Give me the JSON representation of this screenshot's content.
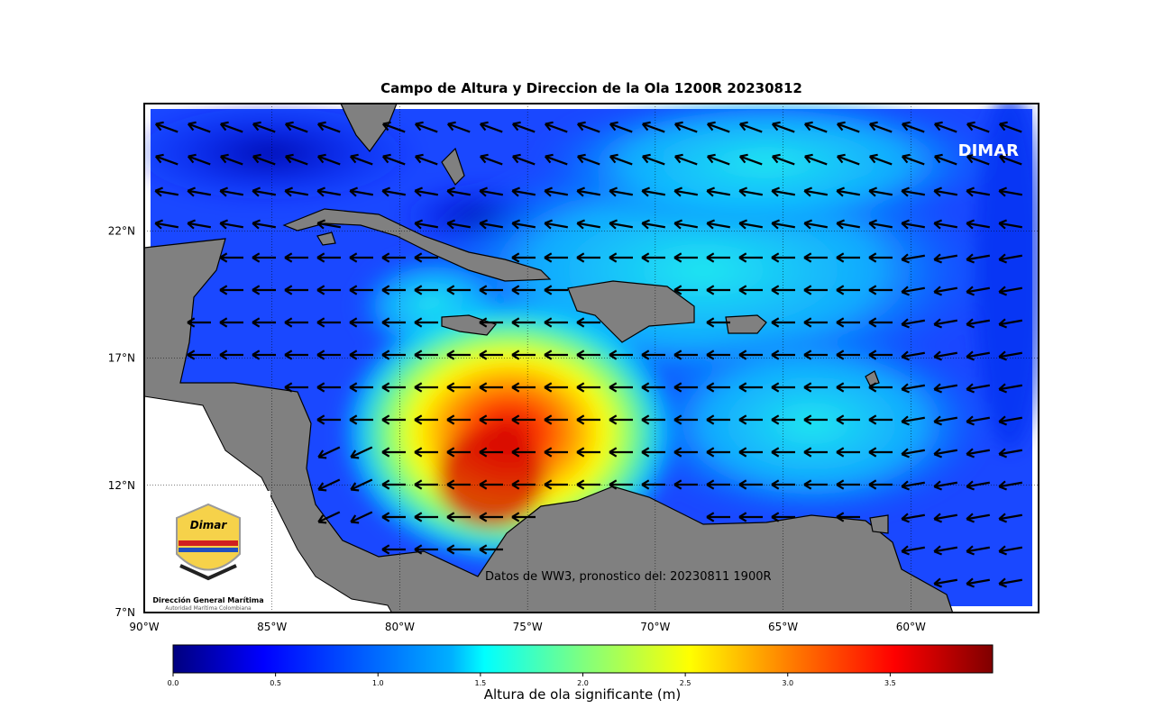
{
  "title": "Campo de Altura y Direccion de la Ola 1200R 20230812",
  "watermark": "DIMAR",
  "source_note": "Datos de WW3, pronostico del: 20230811 1900R",
  "map": {
    "lonlim": [
      -90,
      -55
    ],
    "latlim": [
      7,
      27
    ],
    "grid": true,
    "lon_ticks": [
      {
        "value": -90,
        "label": "90°W"
      },
      {
        "value": -85,
        "label": "85°W"
      },
      {
        "value": -80,
        "label": "80°W"
      },
      {
        "value": -75,
        "label": "75°W"
      },
      {
        "value": -70,
        "label": "70°W"
      },
      {
        "value": -65,
        "label": "65°W"
      },
      {
        "value": -60,
        "label": "60°W"
      }
    ],
    "lat_ticks": [
      {
        "value": 7,
        "label": "7°N"
      },
      {
        "value": 12,
        "label": "12°N"
      },
      {
        "value": 17,
        "label": "17°N"
      },
      {
        "value": 22,
        "label": "22°N"
      }
    ]
  },
  "colorbar": {
    "label": "Altura de ola significante (m)",
    "lim": [
      0,
      4
    ],
    "ticks": [
      {
        "value": 0,
        "label": "0.0"
      },
      0.5,
      {
        "value": 1,
        "label": "1.0"
      },
      1.5,
      {
        "value": 2,
        "label": "2.0"
      },
      2.5,
      {
        "value": 3,
        "label": "3.0"
      },
      3.5
    ]
  },
  "logo": {
    "brand": "Dimar",
    "name": "Dirección General Marítima",
    "subtitle": "Autoridad Marítima Colombiana"
  }
}
